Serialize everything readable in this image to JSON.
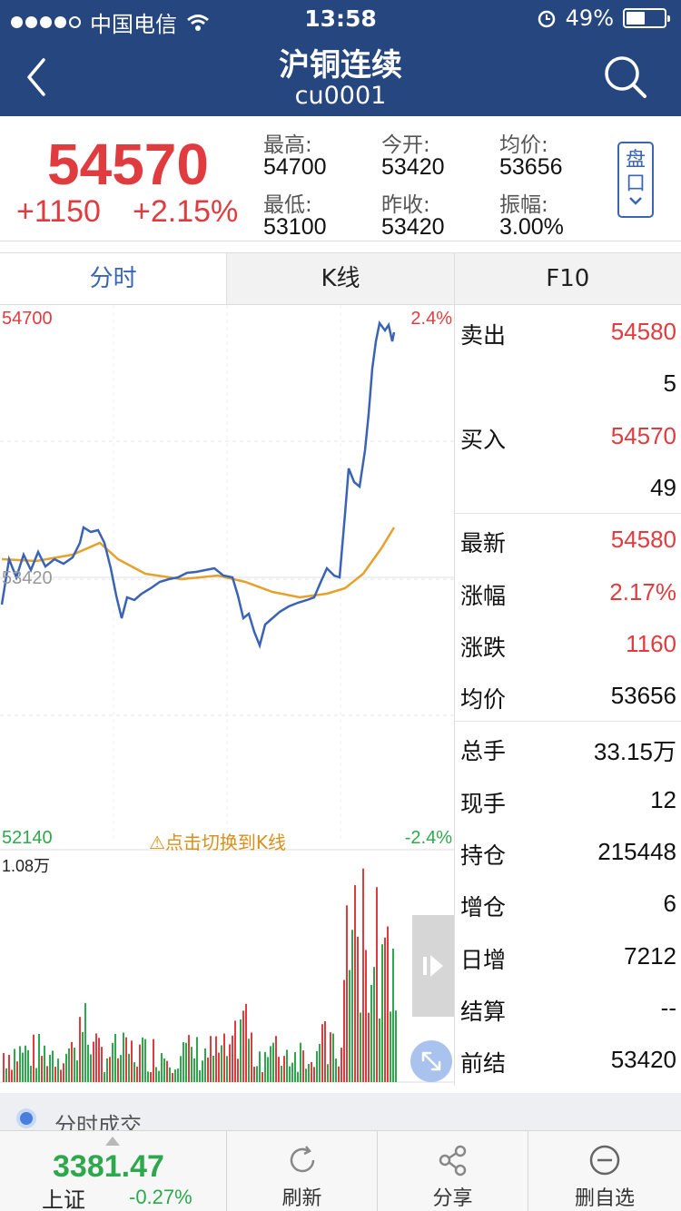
{
  "status_bar": {
    "carrier": "中国电信",
    "time": "13:58",
    "battery": "49%",
    "battery_level": 0.49
  },
  "nav": {
    "title": "沪铜连续",
    "code": "cu0001",
    "back_icon": "back-chevron-icon",
    "search_icon": "search-icon"
  },
  "quote": {
    "price": "54570",
    "change": "+1150",
    "change_pct": "+2.15%",
    "high_label": "最高:",
    "high": "54700",
    "open_label": "今开:",
    "open": "53420",
    "avg_label": "均价:",
    "avg": "53656",
    "low_label": "最低:",
    "low": "53100",
    "prev_close_label": "昨收:",
    "prev_close": "53420",
    "amplitude_label": "振幅:",
    "amplitude": "3.00%",
    "pan_button": "盘口",
    "up_color": "#e03c3f",
    "down_color": "#2ea84c"
  },
  "tabs": [
    {
      "label": "分时",
      "active": true
    },
    {
      "label": "K线"
    },
    {
      "label": "F10"
    }
  ],
  "chart": {
    "top_price": "54700",
    "top_pct": "2.4%",
    "mid_price": "53420",
    "bottom_price": "52140",
    "bottom_pct": "-2.4%",
    "volume_max": "1.08万",
    "switch_hint": "⚠点击切换到K线",
    "price_line_color": "#3b63b5",
    "avg_line_color": "#e4a12c"
  },
  "orderbook": [
    {
      "key": "卖出",
      "value": "54580",
      "color": "up"
    },
    {
      "key": "",
      "value": "5",
      "color": "normal"
    },
    {
      "key": "买入",
      "value": "54570",
      "color": "up"
    },
    {
      "key": "",
      "value": "49",
      "color": "normal"
    },
    {
      "key": "最新",
      "value": "54580",
      "color": "up"
    },
    {
      "key": "涨幅",
      "value": "2.17%",
      "color": "up"
    },
    {
      "key": "涨跌",
      "value": "1160",
      "color": "up"
    },
    {
      "key": "均价",
      "value": "53656",
      "color": "normal"
    },
    {
      "key": "总手",
      "value": "33.15万",
      "color": "normal"
    },
    {
      "key": "现手",
      "value": "12",
      "color": "normal"
    },
    {
      "key": "持仓",
      "value": "215448",
      "color": "normal"
    },
    {
      "key": "增仓",
      "value": "6",
      "color": "normal"
    },
    {
      "key": "日增",
      "value": "7212",
      "color": "normal"
    },
    {
      "key": "结算",
      "value": "--",
      "color": "normal"
    },
    {
      "key": "前结",
      "value": "53420",
      "color": "normal"
    }
  ],
  "section": {
    "title": "分时成交"
  },
  "toolbar": {
    "index_value": "3381.47",
    "index_name": "上证",
    "index_change": "-0.27%",
    "refresh": "刷新",
    "share": "分享",
    "remove_watch": "删自选"
  }
}
